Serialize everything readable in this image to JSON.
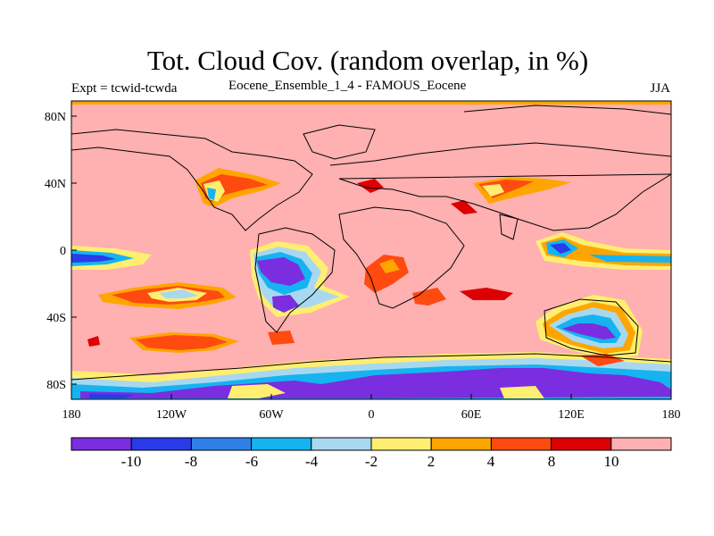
{
  "title": "Tot. Cloud Cov. (random overlap, in %)",
  "subtitle_left": "Expt = tcwid-tcwda",
  "subtitle_center": "Eocene_Ensemble_1_4 - FAMOUS_Eocene",
  "subtitle_right": "JJA",
  "axes": {
    "x_ticks": [
      "180",
      "120W",
      "60W",
      "0",
      "60E",
      "120E",
      "180"
    ],
    "y_ticks": [
      "80N",
      "40N",
      "0",
      "40S",
      "80S"
    ]
  },
  "colorbar": {
    "labels": [
      "-10",
      "-8",
      "-6",
      "-4",
      "-2",
      "2",
      "4",
      "8",
      "10"
    ],
    "colors": [
      "#7b2de0",
      "#2a3be8",
      "#2f7fe8",
      "#15b4f0",
      "#a8d8f0",
      "#ffee70",
      "#ffa500",
      "#ff4a10",
      "#dd0000",
      "#ffb0b0"
    ]
  },
  "colors": {
    "background_field": "#ffb0b0"
  }
}
